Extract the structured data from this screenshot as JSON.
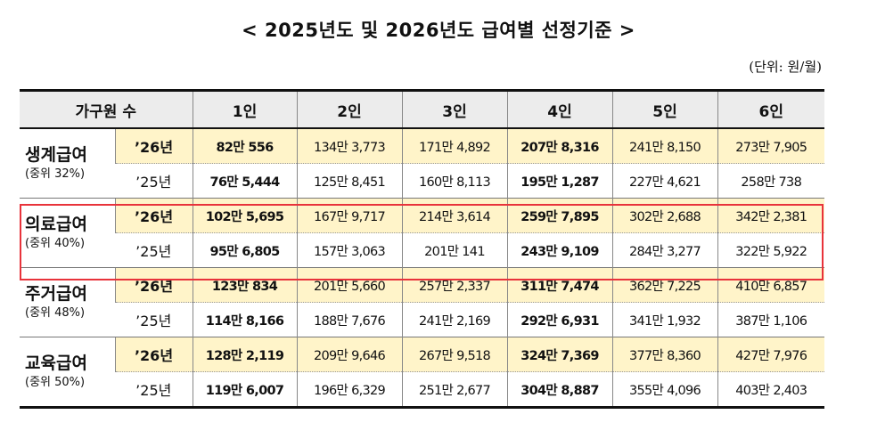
{
  "title": "< 2025년도 및 2026년도 급여별 선정기준 >",
  "unit": "(단위: 원/월)",
  "headers": [
    "가구원 수",
    "1인",
    "2인",
    "3인",
    "4인",
    "5인",
    "6인"
  ],
  "rows": [
    {
      "category": "생계급여",
      "sub": "(중위 32%)",
      "y26": {
        "year": "’26년",
        "values": [
          "82만 556",
          "134만 3,773",
          "171만 4,892",
          "207만 8,316",
          "241만 8,150",
          "273만 7,905"
        ]
      },
      "y25": {
        "year": "’25년",
        "values": [
          "76만 5,444",
          "125만 8,451",
          "160만 8,113",
          "195만 1,287",
          "227만 4,621",
          "258만 738"
        ]
      }
    },
    {
      "category": "의료급여",
      "sub": "(중위 40%)",
      "y26": {
        "year": "’26년",
        "values": [
          "102만 5,695",
          "167만 9,717",
          "214만 3,614",
          "259만 7,895",
          "302만 2,688",
          "342만 2,381"
        ]
      },
      "y25": {
        "year": "’25년",
        "values": [
          "95만 6,805",
          "157만 3,063",
          "201만 141",
          "243만 9,109",
          "284만 3,277",
          "322만 5,922"
        ]
      }
    },
    {
      "category": "주거급여",
      "sub": "(중위 48%)",
      "y26": {
        "year": "’26년",
        "values": [
          "123만 834",
          "201만 5,660",
          "257만 2,337",
          "311만 7,474",
          "362만 7,225",
          "410만 6,857"
        ]
      },
      "y25": {
        "year": "’25년",
        "values": [
          "114만 8,166",
          "188만 7,676",
          "241만 2,169",
          "292만 6,931",
          "341만 1,932",
          "387만 1,106"
        ]
      }
    },
    {
      "category": "교육급여",
      "sub": "(중위 50%)",
      "y26": {
        "year": "’26년",
        "values": [
          "128만 2,119",
          "209만 9,646",
          "267만 9,518",
          "324만 7,369",
          "377만 8,360",
          "427만 7,976"
        ]
      },
      "y25": {
        "year": "’25년",
        "values": [
          "119만 6,007",
          "196만 6,329",
          "251만 2,677",
          "304만 8,887",
          "355만 4,096",
          "403만 2,403"
        ]
      }
    }
  ],
  "colors": {
    "highlight_row_fill": "#fff4c9",
    "header_fill": "#ececec",
    "highlight_box": "#e8333b"
  }
}
